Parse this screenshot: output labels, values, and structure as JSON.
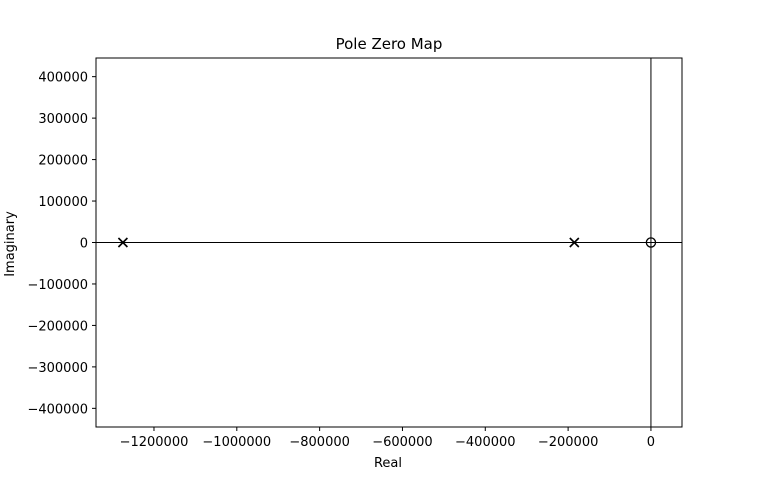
{
  "chart_data": {
    "type": "scatter",
    "title": "Pole Zero Map",
    "xlabel": "Real",
    "ylabel": "Imaginary",
    "xlim": [
      -1340000,
      75000
    ],
    "ylim": [
      -445000,
      445000
    ],
    "xticks": [
      -1200000,
      -1000000,
      -800000,
      -600000,
      -400000,
      -200000,
      0
    ],
    "xtick_labels": [
      "−1200000",
      "−1000000",
      "−800000",
      "−600000",
      "−400000",
      "−200000",
      "0"
    ],
    "yticks": [
      400000,
      300000,
      200000,
      100000,
      0,
      -100000,
      -200000,
      -300000,
      -400000
    ],
    "ytick_labels": [
      "400000",
      "300000",
      "200000",
      "100000",
      "0",
      "−100000",
      "−200000",
      "−300000",
      "−400000"
    ],
    "grid": false,
    "reference_lines": {
      "x0": true,
      "y0": true
    },
    "series": [
      {
        "marker": "x",
        "points": [
          {
            "x": -1275000,
            "y": 0
          },
          {
            "x": -185000,
            "y": 0
          }
        ]
      },
      {
        "marker": "o",
        "points": [
          {
            "x": 0,
            "y": 0
          }
        ]
      }
    ],
    "colors": {
      "axes": "#000000",
      "marker": "#000000"
    }
  }
}
